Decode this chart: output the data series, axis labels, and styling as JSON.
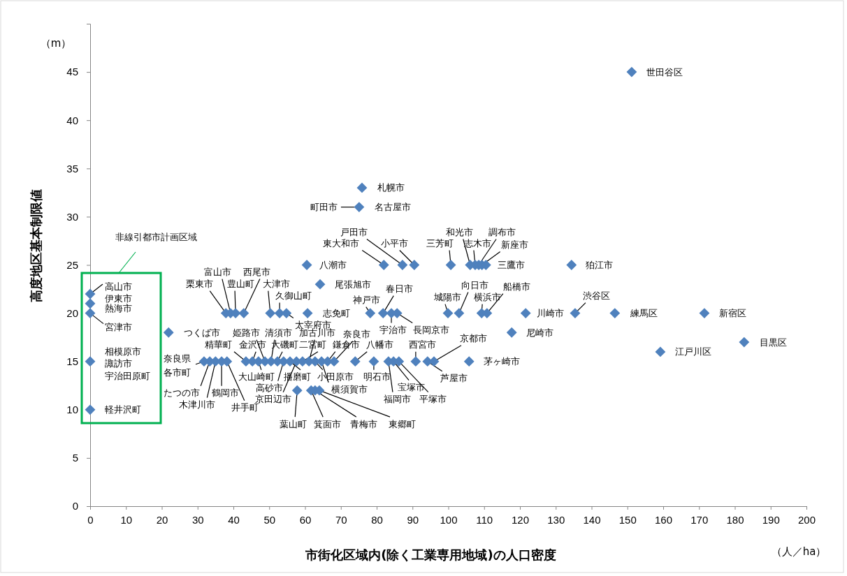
{
  "chart_data": {
    "type": "scatter",
    "xlabel": "市街化区域内(除く工業専用地域)の人口密度",
    "ylabel": "高度地区基本制限値",
    "xlim": [
      0,
      200
    ],
    "xticks": [
      0,
      10,
      20,
      30,
      40,
      50,
      60,
      70,
      80,
      90,
      100,
      110,
      120,
      130,
      140,
      150,
      160,
      170,
      180,
      190,
      200
    ],
    "ylim": [
      0,
      50
    ],
    "yticks": [
      0,
      5,
      10,
      15,
      20,
      25,
      30,
      35,
      40,
      45
    ],
    "grid": false,
    "marker": "diamond",
    "series": [
      {
        "color": "#4f81bd",
        "x": [
          151.2,
          75.9,
          75.1,
          87.2,
          82,
          90.5,
          100.7,
          106.1,
          107.5,
          108.5,
          109.4,
          110.5,
          134.4,
          60.5,
          64.2,
          0,
          0,
          0,
          37.9,
          39.2,
          40.6,
          42.9,
          50.3,
          52.9,
          54.8,
          60.7,
          78.2,
          81.8,
          84.1,
          85.7,
          99.9,
          103,
          109.3,
          110.8,
          121.6,
          135.4,
          146.5,
          171.5,
          21.9,
          117.7,
          182.6,
          159.2,
          0,
          0,
          31.8,
          33.4,
          35,
          36.7,
          38.2,
          43.5,
          45.3,
          47,
          48.8,
          50.5,
          52.3,
          54,
          55.8,
          57.6,
          59.3,
          61.1,
          62.8,
          64.6,
          66.3,
          68.1,
          74,
          79.2,
          83.3,
          84.7,
          86.2,
          90.9,
          94.2,
          96,
          105.8,
          57.8,
          61.7,
          62.8,
          64
        ],
        "values": [
          45,
          33,
          31,
          25,
          25,
          25,
          25,
          25,
          25,
          25,
          25,
          25,
          25,
          25,
          23,
          22,
          21,
          20,
          20,
          20,
          20,
          20,
          20,
          20,
          20,
          20,
          20,
          20,
          20,
          20,
          20,
          20,
          20,
          20,
          20,
          20,
          20,
          20,
          18,
          18,
          17,
          16,
          15,
          10,
          15,
          15,
          15,
          15,
          15,
          15,
          15,
          15,
          15,
          15,
          15,
          15,
          15,
          15,
          15,
          15,
          15,
          15,
          15,
          15,
          15,
          15,
          15,
          15,
          15,
          15,
          15,
          15,
          15,
          12,
          12,
          12,
          12
        ]
      }
    ],
    "annotations": [
      {
        "text": "世田谷区",
        "x": 151.2,
        "y": 45
      },
      {
        "text": "札幌市",
        "x": 75.9,
        "y": 33
      },
      {
        "text": "町田市",
        "x": 75.1,
        "y": 31
      },
      {
        "text": "名古屋市",
        "x": 75.1,
        "y": 31
      },
      {
        "text": "戸田市",
        "x": 87.2,
        "y": 25
      },
      {
        "text": "東大和市",
        "x": 82,
        "y": 25
      },
      {
        "text": "小平市",
        "x": 90.5,
        "y": 25
      },
      {
        "text": "三芳町",
        "x": 100.7,
        "y": 25
      },
      {
        "text": "和光市",
        "x": 106.1,
        "y": 25
      },
      {
        "text": "志木市",
        "x": 107.5,
        "y": 25
      },
      {
        "text": "調布市",
        "x": 108.5,
        "y": 25
      },
      {
        "text": "新座市",
        "x": 109.4,
        "y": 25
      },
      {
        "text": "三鷹市",
        "x": 110.5,
        "y": 25
      },
      {
        "text": "狛江市",
        "x": 134.4,
        "y": 25
      },
      {
        "text": "八潮市",
        "x": 60.5,
        "y": 25
      },
      {
        "text": "尾張旭市",
        "x": 64.2,
        "y": 23
      },
      {
        "text": "高山市",
        "x": 0,
        "y": 22
      },
      {
        "text": "伊東市",
        "x": 0,
        "y": 21
      },
      {
        "text": "熱海市",
        "x": 0,
        "y": 20
      },
      {
        "text": "宮津市",
        "x": 0,
        "y": 20
      },
      {
        "text": "栗東市",
        "x": 37.9,
        "y": 20
      },
      {
        "text": "富山市",
        "x": 39.2,
        "y": 20
      },
      {
        "text": "豊山町",
        "x": 40.6,
        "y": 20
      },
      {
        "text": "西尾市",
        "x": 42.9,
        "y": 20
      },
      {
        "text": "大津市",
        "x": 50.3,
        "y": 20
      },
      {
        "text": "久御山町",
        "x": 52.9,
        "y": 20
      },
      {
        "text": "太宰府市",
        "x": 54.8,
        "y": 20
      },
      {
        "text": "志免町",
        "x": 60.7,
        "y": 20
      },
      {
        "text": "神戸市",
        "x": 78.2,
        "y": 20
      },
      {
        "text": "春日市",
        "x": 81.8,
        "y": 20
      },
      {
        "text": "宇治市",
        "x": 84.1,
        "y": 20
      },
      {
        "text": "長岡京市",
        "x": 85.7,
        "y": 20
      },
      {
        "text": "城陽市",
        "x": 99.9,
        "y": 20
      },
      {
        "text": "向日市",
        "x": 103,
        "y": 20
      },
      {
        "text": "横浜市",
        "x": 109.3,
        "y": 20
      },
      {
        "text": "船橋市",
        "x": 110.8,
        "y": 20
      },
      {
        "text": "川崎市",
        "x": 121.6,
        "y": 20
      },
      {
        "text": "渋谷区",
        "x": 135.4,
        "y": 20
      },
      {
        "text": "練馬区",
        "x": 146.5,
        "y": 20
      },
      {
        "text": "新宿区",
        "x": 171.5,
        "y": 20
      },
      {
        "text": "つくば市",
        "x": 21.9,
        "y": 18
      },
      {
        "text": "尼崎市",
        "x": 117.7,
        "y": 18
      },
      {
        "text": "目黒区",
        "x": 182.6,
        "y": 17
      },
      {
        "text": "江戸川区",
        "x": 159.2,
        "y": 16
      },
      {
        "text": "相模原市",
        "x": 0,
        "y": 15
      },
      {
        "text": "諏訪市",
        "x": 0,
        "y": 15
      },
      {
        "text": "宇治田原町",
        "x": 0,
        "y": 15
      },
      {
        "text": "軽井沢町",
        "x": 0,
        "y": 10
      },
      {
        "text": "奈良県各市町",
        "x": 31.8,
        "y": 15
      },
      {
        "text": "たつの市",
        "x": 33.4,
        "y": 15
      },
      {
        "text": "木津川市",
        "x": 35,
        "y": 15
      },
      {
        "text": "鶴岡市",
        "x": 36.7,
        "y": 15
      },
      {
        "text": "井手町",
        "x": 38.2,
        "y": 15
      },
      {
        "text": "精華町",
        "x": 43.5,
        "y": 15
      },
      {
        "text": "金沢市",
        "x": 45.3,
        "y": 15
      },
      {
        "text": "大山崎町",
        "x": 47,
        "y": 15
      },
      {
        "text": "姫路市",
        "x": 48.8,
        "y": 15
      },
      {
        "text": "清須市",
        "x": 50.5,
        "y": 15
      },
      {
        "text": "大磯町",
        "x": 52.3,
        "y": 15
      },
      {
        "text": "高砂市",
        "x": 54,
        "y": 15
      },
      {
        "text": "播磨町",
        "x": 55.8,
        "y": 15
      },
      {
        "text": "京田辺市",
        "x": 57.6,
        "y": 15
      },
      {
        "text": "二宮町",
        "x": 59.3,
        "y": 15
      },
      {
        "text": "加古川市",
        "x": 61.1,
        "y": 15
      },
      {
        "text": "小田原市",
        "x": 62.8,
        "y": 15
      },
      {
        "text": "横須賀市",
        "x": 64.6,
        "y": 15
      },
      {
        "text": "鎌倉市",
        "x": 66.3,
        "y": 15
      },
      {
        "text": "奈良市",
        "x": 68.1,
        "y": 15
      },
      {
        "text": "八幡市",
        "x": 74,
        "y": 15
      },
      {
        "text": "明石市",
        "x": 79.2,
        "y": 15
      },
      {
        "text": "福岡市",
        "x": 83.3,
        "y": 15
      },
      {
        "text": "宝塚市",
        "x": 84.7,
        "y": 15
      },
      {
        "text": "平塚市",
        "x": 86.2,
        "y": 15
      },
      {
        "text": "西宮市",
        "x": 90.9,
        "y": 15
      },
      {
        "text": "芦屋市",
        "x": 94.2,
        "y": 15
      },
      {
        "text": "京都市",
        "x": 96,
        "y": 15
      },
      {
        "text": "茅ヶ崎市",
        "x": 105.8,
        "y": 15
      },
      {
        "text": "葉山町",
        "x": 57.8,
        "y": 12
      },
      {
        "text": "箕面市",
        "x": 61.7,
        "y": 12
      },
      {
        "text": "青梅市",
        "x": 62.8,
        "y": 12
      },
      {
        "text": "東郷町",
        "x": 64,
        "y": 12
      },
      "（m）",
      "（人／ha）",
      "非線引都市計画区域"
    ]
  }
}
